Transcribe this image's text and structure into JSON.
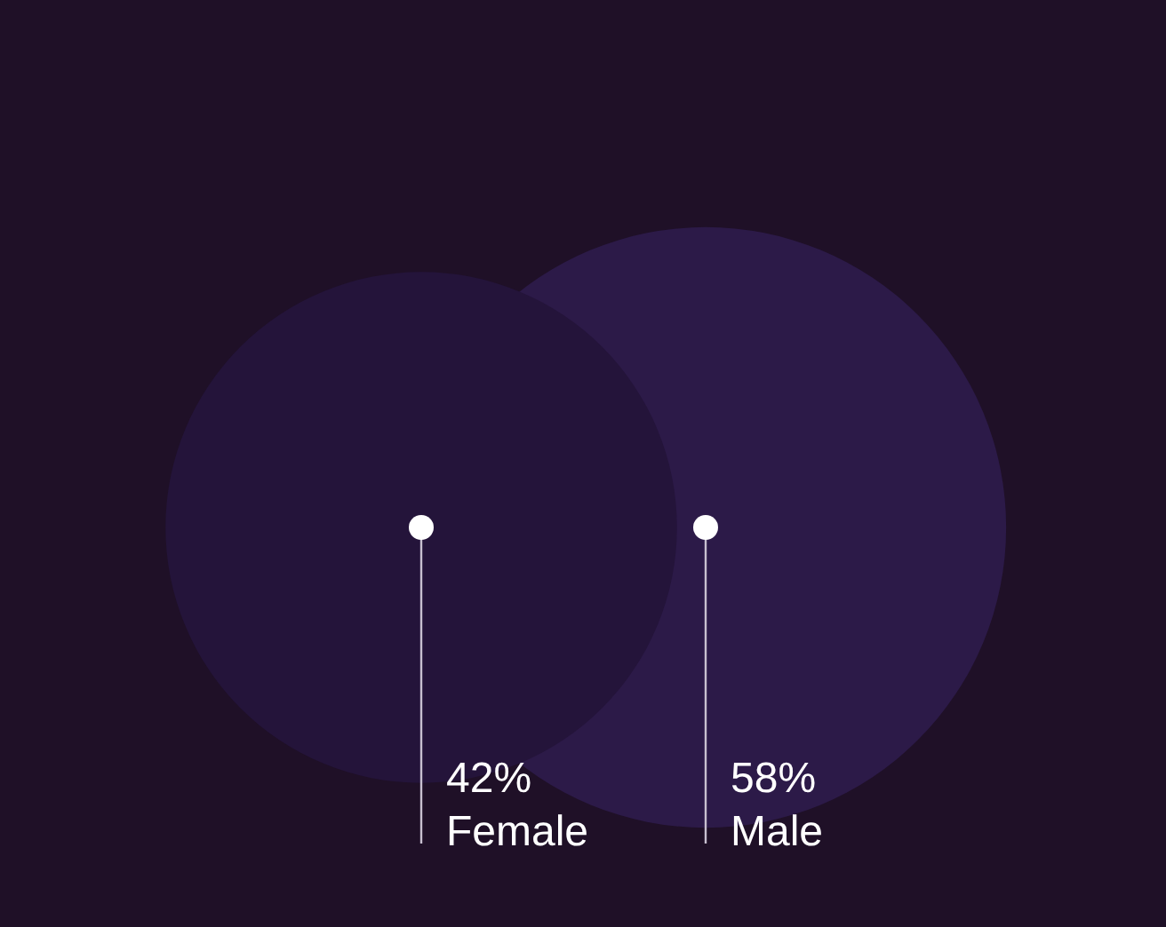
{
  "chart_data": {
    "type": "other",
    "categories": [
      "Female",
      "Male"
    ],
    "values": [
      42,
      58
    ],
    "value_labels": [
      "42%",
      "58%"
    ],
    "colors": [
      "#24143a",
      "#2c1a48"
    ]
  }
}
